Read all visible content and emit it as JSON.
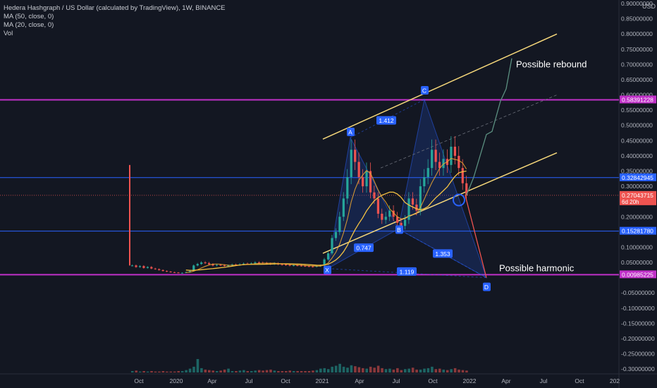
{
  "legend": {
    "title": "Hedera Hashgraph / US Dollar (calculated by TradingView), 1W, BINANCE",
    "ma50": "MA (50, close, 0)",
    "ma20": "MA (20, close, 0)",
    "vol": "Vol"
  },
  "axis": {
    "currency": "USD",
    "price_ticks": [
      "0.90000000",
      "0.85000000",
      "0.80000000",
      "0.75000000",
      "0.70000000",
      "0.65000000",
      "0.60000000",
      "0.55000000",
      "0.50000000",
      "0.45000000",
      "0.40000000",
      "0.35000000",
      "0.30000000",
      "0.25000000",
      "0.20000000",
      "0.15000000",
      "0.10000000",
      "0.05000000",
      "-0.05000000",
      "-0.10000000",
      "-0.15000000",
      "-0.20000000",
      "-0.25000000",
      "-0.30000000"
    ],
    "time_ticks": [
      "Oct",
      "2020",
      "Apr",
      "Jul",
      "Oct",
      "2021",
      "Apr",
      "Jul",
      "Oct",
      "2022",
      "Apr",
      "Jul",
      "Oct",
      "202"
    ]
  },
  "price_labels": [
    {
      "text": "0.58391228",
      "value": 0.58391228,
      "color": "#c030c8"
    },
    {
      "text": "0.32842945",
      "value": 0.32842945,
      "color": "#2962ff"
    },
    {
      "text": "0.27043715",
      "sub": "6d 20h",
      "value": 0.27043715,
      "color": "#ef5350"
    },
    {
      "text": "0.15281780",
      "value": 0.1528178,
      "color": "#2962ff"
    },
    {
      "text": "0.00985225",
      "value": 0.00985225,
      "color": "#c030c8"
    }
  ],
  "annotations": {
    "possible_rebound": "Possible rebound",
    "possible_harmonic": "Possible harmonic",
    "point_a": "A",
    "point_b": "B",
    "point_c": "C",
    "point_d": "D",
    "point_x": "X",
    "ratio_ac": "1.412",
    "ratio_xb": "0.747",
    "ratio_bd": "1.353",
    "ratio_xd": "1.119"
  },
  "colors": {
    "background": "#131722",
    "up": "#26a69a",
    "down": "#ef5350",
    "ma50": "#f5c242",
    "ma20": "#f0a830",
    "channel": "#f5d77a",
    "magenta": "#c030c8",
    "blue_line": "#2962ff",
    "harmonic_fill": "#2962ff",
    "rebound_path": "#5b8f80",
    "drop_path": "#ef5350"
  },
  "chart_data": {
    "type": "candlestick",
    "title": "Hedera Hashgraph / US Dollar (calculated by TradingView), 1W, BINANCE",
    "ylim": [
      -0.33,
      0.905
    ],
    "horizontal_levels": [
      0.58391228,
      0.32842945,
      0.1528178,
      0.00985225
    ],
    "harmonic_points": {
      "X": 0.035,
      "A": 0.46,
      "B": 0.16,
      "C": 0.585,
      "D": 0.0
    },
    "channel_upper": {
      "from": 0.455,
      "to": 0.8
    },
    "channel_lower": {
      "from": 0.08,
      "to": 0.41
    },
    "rebound_target": 0.72,
    "weekly_close": [
      0.04,
      0.035,
      0.038,
      0.032,
      0.035,
      0.03,
      0.028,
      0.025,
      0.022,
      0.02,
      0.018,
      0.017,
      0.016,
      0.016,
      0.018,
      0.022,
      0.04,
      0.045,
      0.05,
      0.048,
      0.044,
      0.04,
      0.042,
      0.041,
      0.039,
      0.04,
      0.043,
      0.042,
      0.044,
      0.046,
      0.045,
      0.047,
      0.05,
      0.049,
      0.048,
      0.046,
      0.045,
      0.047,
      0.044,
      0.043,
      0.042,
      0.04,
      0.041,
      0.04,
      0.039,
      0.038,
      0.037,
      0.036,
      0.038,
      0.04,
      0.06,
      0.08,
      0.13,
      0.15,
      0.2,
      0.26,
      0.33,
      0.42,
      0.38,
      0.33,
      0.3,
      0.35,
      0.28,
      0.26,
      0.21,
      0.19,
      0.2,
      0.22,
      0.2,
      0.18,
      0.17,
      0.19,
      0.26,
      0.24,
      0.22,
      0.3,
      0.33,
      0.36,
      0.42,
      0.38,
      0.36,
      0.39,
      0.37,
      0.43,
      0.4,
      0.36,
      0.31,
      0.27
    ],
    "volume": [
      3,
      4,
      2,
      3,
      2,
      3,
      2,
      2,
      3,
      2,
      2,
      2,
      3,
      3,
      5,
      8,
      12,
      28,
      9,
      6,
      5,
      4,
      3,
      4,
      6,
      8,
      3,
      3,
      4,
      5,
      3,
      3,
      4,
      5,
      4,
      5,
      6,
      4,
      3,
      3,
      3,
      4,
      3,
      3,
      3,
      3,
      3,
      4,
      5,
      8,
      9,
      7,
      12,
      14,
      18,
      12,
      10,
      15,
      13,
      11,
      9,
      8,
      12,
      10,
      14,
      9,
      7,
      8,
      6,
      9,
      5,
      7,
      8,
      10,
      6,
      6,
      8,
      9,
      12,
      7,
      8,
      6,
      5,
      7,
      9,
      6,
      5,
      4
    ]
  }
}
